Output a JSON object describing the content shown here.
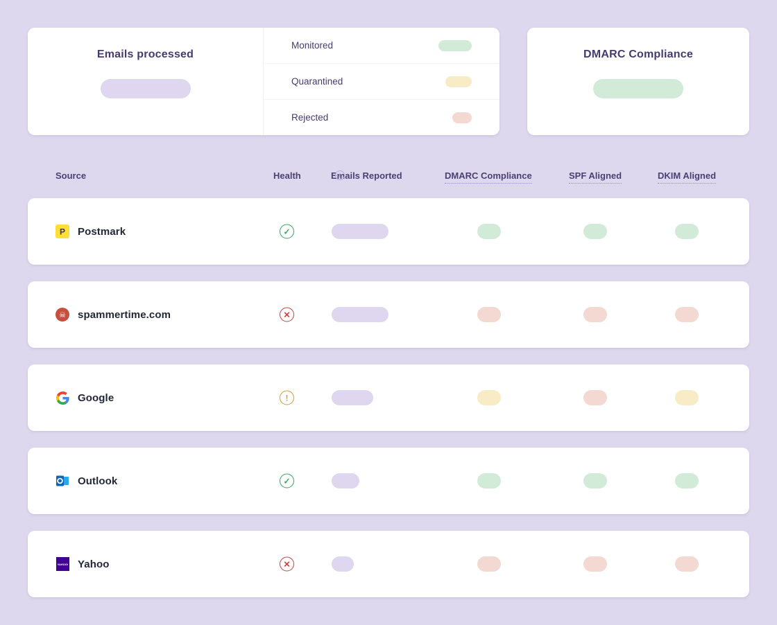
{
  "cards": {
    "emails_processed": {
      "title": "Emails processed",
      "value_pill": {
        "tone": "lavender",
        "width": 130
      }
    },
    "breakdown": {
      "items": [
        {
          "label": "Monitored",
          "tone": "green",
          "pill_width": 48
        },
        {
          "label": "Quarantined",
          "tone": "yellow",
          "pill_width": 38
        },
        {
          "label": "Rejected",
          "tone": "pink",
          "pill_width": 28
        }
      ]
    },
    "dmarc_compliance": {
      "title": "DMARC Compliance",
      "value_pill": {
        "tone": "green",
        "width": 116
      }
    }
  },
  "table": {
    "header": {
      "source": "Source",
      "health": "Health",
      "emails_reported": "Emails Reported",
      "info_icon": "i",
      "dmarc": "DMARC Compliance",
      "spf": "SPF Aligned",
      "dkim": "DKIM Aligned"
    },
    "rows": [
      {
        "source": "Postmark",
        "icon": "postmark-icon",
        "health": "pass",
        "emails_pill_width": 82,
        "dmarc": "pass",
        "spf": "pass",
        "dkim": "pass"
      },
      {
        "source": "spammertime.com",
        "icon": "spam-skull-icon",
        "health": "fail",
        "emails_pill_width": 82,
        "dmarc": "fail",
        "spf": "fail",
        "dkim": "fail"
      },
      {
        "source": "Google",
        "icon": "google-icon",
        "health": "warn",
        "emails_pill_width": 60,
        "dmarc": "warn",
        "spf": "fail",
        "dkim": "warn"
      },
      {
        "source": "Outlook",
        "icon": "outlook-icon",
        "health": "pass",
        "emails_pill_width": 40,
        "dmarc": "pass",
        "spf": "pass",
        "dkim": "pass"
      },
      {
        "source": "Yahoo",
        "icon": "yahoo-icon",
        "health": "fail",
        "emails_pill_width": 32,
        "dmarc": "fail",
        "spf": "fail",
        "dkim": "fail"
      }
    ]
  },
  "health_glyphs": {
    "pass": "✓",
    "fail": "✕",
    "warn": "!"
  },
  "colors": {
    "background": "#ded8ee",
    "accent_purple": "#463a71",
    "pill_lavender": "#ded7ef",
    "pill_green": "#d2ebd9",
    "pill_yellow": "#f8ecc6",
    "pill_pink": "#f3d9d2",
    "health_pass": "#34a759",
    "health_fail": "#c6413a",
    "health_warn": "#d99b2e"
  }
}
